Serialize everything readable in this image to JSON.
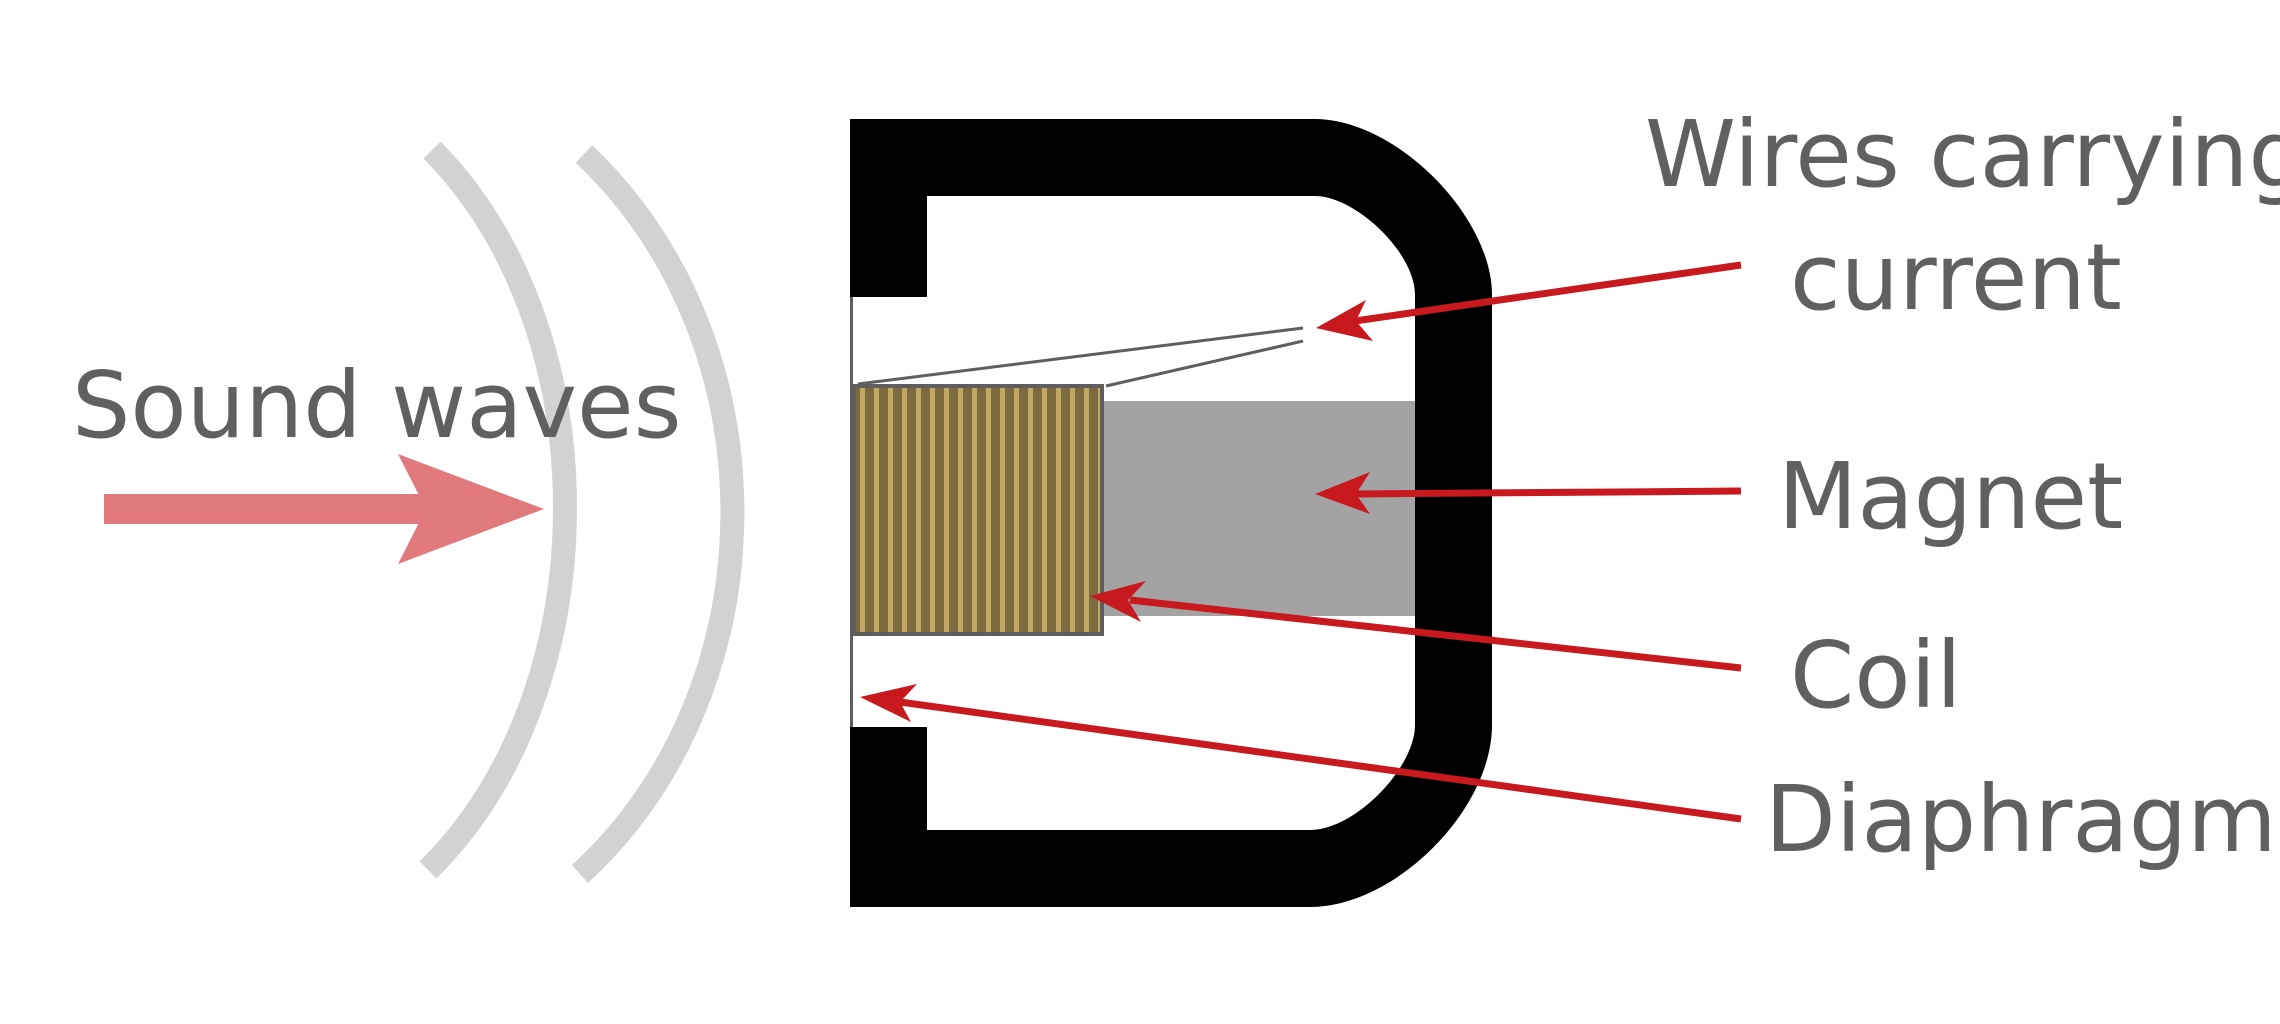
{
  "colors": {
    "background": "#ffffff",
    "housing": "#000000",
    "label_text": "#606060",
    "pointer_arrow": "#c8191e",
    "sound_arrow": "#e07a7c",
    "sound_wave": "#d2d2d2",
    "magnet": "#a3a3a3",
    "coil_dark": "#7d6a3e",
    "coil_stripe": "#c0a860",
    "outline": "#5e5e5e"
  },
  "labels": {
    "sound_waves": "Sound waves",
    "wires_line1": "Wires carrying",
    "wires_line2": "current",
    "magnet": "Magnet",
    "coil": "Coil",
    "diaphragm": "Diaphragm"
  },
  "icons": {
    "sound_direction": "right-arrow-icon",
    "pointer": "arrowhead-icon"
  }
}
